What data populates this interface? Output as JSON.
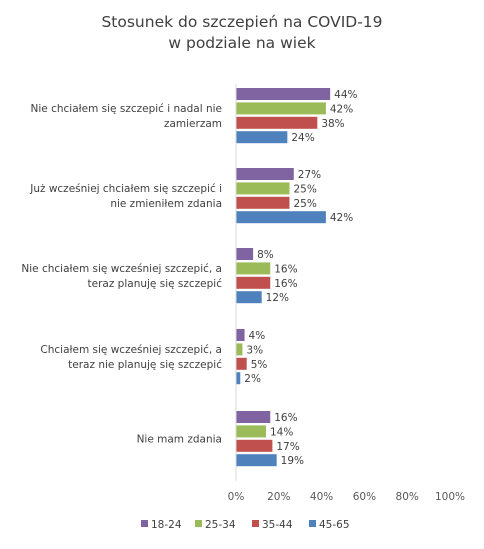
{
  "chart_data": {
    "type": "bar",
    "orientation": "horizontal",
    "title_lines": [
      "Stosunek do szczepień na COVID-19",
      "w podziale na wiek"
    ],
    "categories": [
      [
        "Nie chciałem się szczepić i nadal nie",
        "zamierzam"
      ],
      [
        "Już wcześniej chciałem się szczepić i",
        "nie zmieniłem zdania"
      ],
      [
        "Nie chciałem się wcześniej szczepić, a",
        "teraz planuję się szczepić"
      ],
      [
        "Chciałem się wcześniej szczepić, a",
        "teraz nie planuję się szczepić"
      ],
      [
        "Nie mam zdania"
      ]
    ],
    "series": [
      {
        "name": "18-24",
        "color": "#8064a2",
        "values": [
          44,
          27,
          8,
          4,
          16
        ]
      },
      {
        "name": "25-34",
        "color": "#9bbb59",
        "values": [
          42,
          25,
          16,
          3,
          14
        ]
      },
      {
        "name": "35-44",
        "color": "#c0504d",
        "values": [
          38,
          25,
          16,
          5,
          17
        ]
      },
      {
        "name": "45-65",
        "color": "#4f81bd",
        "values": [
          24,
          42,
          12,
          2,
          19
        ]
      }
    ],
    "value_suffix": "%",
    "xlim": [
      0,
      100
    ],
    "xticks": [
      "0%",
      "20%",
      "40%",
      "60%",
      "80%",
      "100%"
    ],
    "grid": false,
    "legend_position": "bottom"
  }
}
